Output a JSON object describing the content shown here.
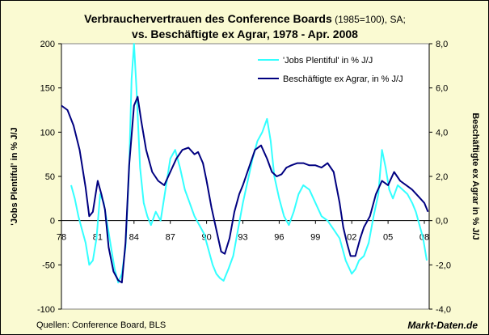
{
  "chart_data": {
    "type": "line",
    "title_bold_1": "Verbrauchervertrauen des Conference Boards",
    "title_normal_1": " (1985=100), SA;",
    "title_line_2": "vs. Beschäftigte ex Agrar, 1978 - Apr. 2008",
    "ylabel_left": "'Jobs Plentiful' in % J/J",
    "ylabel_right": "Beschäftigte ex Agrar in % J/J",
    "x_ticks": [
      "78",
      "81",
      "84",
      "87",
      "90",
      "93",
      "96",
      "99",
      "02",
      "05",
      "08"
    ],
    "y_left_ticks": [
      "200",
      "150",
      "100",
      "50",
      "0",
      "-50",
      "-100"
    ],
    "y_right_ticks": [
      "8,0",
      "6,0",
      "4,0",
      "2,0",
      "0,0",
      "-2,0",
      "-4,0"
    ],
    "xlim": [
      1978,
      2008.4
    ],
    "ylim_left": [
      -100,
      200
    ],
    "ylim_right": [
      -4,
      8
    ],
    "grid": false,
    "legend_position": "top-right",
    "series": [
      {
        "name": "'Jobs Plentiful' in % J/J",
        "axis": "left",
        "color": "#33ffff",
        "x": [
          1978.8,
          1979.1,
          1979.4,
          1979.7,
          1980.0,
          1980.3,
          1980.6,
          1980.9,
          1981.2,
          1981.5,
          1981.8,
          1982.1,
          1982.4,
          1982.7,
          1983.0,
          1983.3,
          1983.6,
          1983.8,
          1984.0,
          1984.2,
          1984.5,
          1984.8,
          1985.1,
          1985.4,
          1985.8,
          1986.2,
          1986.6,
          1987.0,
          1987.4,
          1987.8,
          1988.2,
          1988.6,
          1989.0,
          1989.4,
          1989.8,
          1990.2,
          1990.5,
          1990.8,
          1991.1,
          1991.4,
          1991.8,
          1992.2,
          1992.6,
          1993.0,
          1993.4,
          1993.8,
          1994.2,
          1994.6,
          1995.0,
          1995.3,
          1995.6,
          1996.0,
          1996.4,
          1996.8,
          1997.2,
          1997.6,
          1998.0,
          1998.5,
          1999.0,
          1999.5,
          2000.0,
          2000.5,
          2001.0,
          2001.5,
          2002.0,
          2002.3,
          2002.6,
          2003.0,
          2003.4,
          2003.8,
          2004.2,
          2004.5,
          2004.8,
          2005.1,
          2005.4,
          2005.8,
          2006.2,
          2006.6,
          2007.0,
          2007.3,
          2007.6,
          2007.9,
          2008.2
        ],
        "y": [
          40,
          25,
          5,
          -10,
          -25,
          -50,
          -45,
          -20,
          30,
          20,
          -5,
          -30,
          -55,
          -70,
          -60,
          -30,
          60,
          160,
          200,
          150,
          60,
          20,
          5,
          -5,
          10,
          0,
          35,
          70,
          80,
          60,
          35,
          20,
          5,
          -5,
          -15,
          -35,
          -50,
          -60,
          -65,
          -68,
          -55,
          -40,
          -10,
          20,
          45,
          70,
          90,
          100,
          115,
          90,
          50,
          25,
          5,
          -5,
          10,
          30,
          40,
          35,
          20,
          5,
          0,
          -10,
          -20,
          -45,
          -60,
          -55,
          -45,
          -40,
          -25,
          5,
          30,
          80,
          60,
          35,
          25,
          40,
          35,
          30,
          20,
          10,
          -5,
          -20,
          -45
        ]
      },
      {
        "name": "Beschäftigte ex Agrar, in % J/J",
        "axis": "right",
        "color": "#000080",
        "x": [
          1978.0,
          1978.5,
          1979.0,
          1979.5,
          1980.0,
          1980.3,
          1980.6,
          1981.0,
          1981.3,
          1981.6,
          1981.9,
          1982.3,
          1982.7,
          1983.0,
          1983.3,
          1983.6,
          1984.0,
          1984.3,
          1984.6,
          1985.0,
          1985.5,
          1986.0,
          1986.5,
          1987.0,
          1987.5,
          1988.0,
          1988.5,
          1989.0,
          1989.3,
          1989.7,
          1990.0,
          1990.4,
          1990.8,
          1991.2,
          1991.5,
          1991.9,
          1992.3,
          1992.7,
          1993.0,
          1993.5,
          1994.0,
          1994.5,
          1995.0,
          1995.4,
          1995.8,
          1996.2,
          1996.6,
          1997.0,
          1997.5,
          1998.0,
          1998.5,
          1999.0,
          1999.5,
          2000.0,
          2000.5,
          2001.0,
          2001.3,
          2001.6,
          2001.9,
          2002.3,
          2002.7,
          2003.0,
          2003.5,
          2004.0,
          2004.5,
          2005.0,
          2005.5,
          2006.0,
          2006.5,
          2007.0,
          2007.5,
          2008.0,
          2008.3
        ],
        "y": [
          5.2,
          5.0,
          4.3,
          3.2,
          1.5,
          0.2,
          0.4,
          1.8,
          1.2,
          0.5,
          -1.2,
          -2.3,
          -2.7,
          -2.8,
          -1.0,
          2.5,
          5.2,
          5.6,
          4.5,
          3.2,
          2.2,
          1.8,
          1.6,
          2.2,
          2.8,
          3.2,
          3.3,
          3.0,
          3.1,
          2.6,
          1.8,
          0.6,
          -0.4,
          -1.4,
          -1.5,
          -0.8,
          0.4,
          1.2,
          1.6,
          2.4,
          3.2,
          3.4,
          2.8,
          2.2,
          2.0,
          2.1,
          2.4,
          2.5,
          2.6,
          2.6,
          2.5,
          2.5,
          2.4,
          2.6,
          2.2,
          0.8,
          -0.3,
          -1.0,
          -1.6,
          -1.6,
          -0.8,
          -0.3,
          0.2,
          1.2,
          1.8,
          1.6,
          2.2,
          1.8,
          1.6,
          1.4,
          1.1,
          0.8,
          0.4
        ]
      }
    ],
    "sources": "Quellen: Conference Board, BLS",
    "brand": "Markt-Daten.de"
  }
}
